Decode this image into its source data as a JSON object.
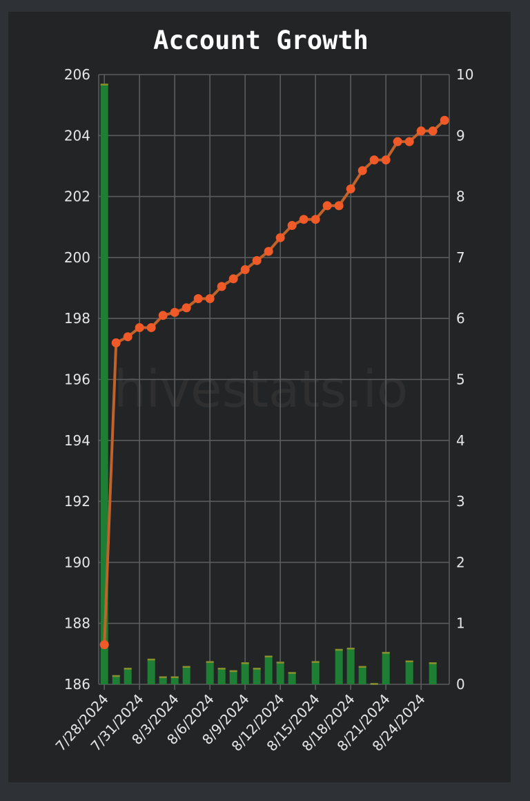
{
  "chart_data": {
    "title": "Account Growth",
    "watermark": "hivestats.io",
    "type": "bar",
    "dates": [
      "7/28/2024",
      "7/29/2024",
      "7/30/2024",
      "7/31/2024",
      "8/1/2024",
      "8/2/2024",
      "8/3/2024",
      "8/4/2024",
      "8/5/2024",
      "8/6/2024",
      "8/7/2024",
      "8/8/2024",
      "8/9/2024",
      "8/10/2024",
      "8/11/2024",
      "8/12/2024",
      "8/13/2024",
      "8/14/2024",
      "8/15/2024",
      "8/16/2024",
      "8/17/2024",
      "8/18/2024",
      "8/19/2024",
      "8/20/2024",
      "8/21/2024",
      "8/22/2024",
      "8/23/2024",
      "8/24/2024",
      "8/25/2024",
      "8/26/2024"
    ],
    "x_tick_labels": [
      "7/28/2024",
      "7/31/2024",
      "8/3/2024",
      "8/6/2024",
      "8/9/2024",
      "8/12/2024",
      "8/15/2024",
      "8/18/2024",
      "8/21/2024",
      "8/24/2024"
    ],
    "y_left": {
      "min": 186,
      "max": 206,
      "ticks": [
        186,
        188,
        190,
        192,
        194,
        196,
        198,
        200,
        202,
        204,
        206
      ]
    },
    "y_right": {
      "min": 0,
      "max": 10,
      "ticks": [
        0,
        1,
        2,
        3,
        4,
        5,
        6,
        7,
        8,
        9,
        10
      ]
    },
    "series": [
      {
        "type": "line",
        "axis": "left",
        "color": "#f05a28",
        "line_color": "#c0622a",
        "values": [
          187.3,
          197.2,
          197.4,
          197.7,
          197.7,
          198.1,
          198.2,
          198.35,
          198.65,
          198.65,
          199.05,
          199.3,
          199.6,
          199.9,
          200.2,
          200.65,
          201.05,
          201.25,
          201.25,
          201.7,
          201.7,
          202.25,
          202.85,
          203.2,
          203.2,
          203.8,
          203.8,
          204.15,
          204.15,
          204.5
        ]
      },
      {
        "type": "bar",
        "axis": "right",
        "color": "#1e7e34",
        "cap_color": "#8a8f2e",
        "values": [
          9.85,
          0.15,
          0.27,
          0,
          0.42,
          0.13,
          0.13,
          0.3,
          0,
          0.38,
          0.27,
          0.23,
          0.36,
          0.27,
          0.47,
          0.37,
          0.2,
          0,
          0.38,
          0,
          0.58,
          0.6,
          0.3,
          0.02,
          0.53,
          0,
          0.39,
          0,
          0.36,
          0
        ]
      }
    ]
  }
}
